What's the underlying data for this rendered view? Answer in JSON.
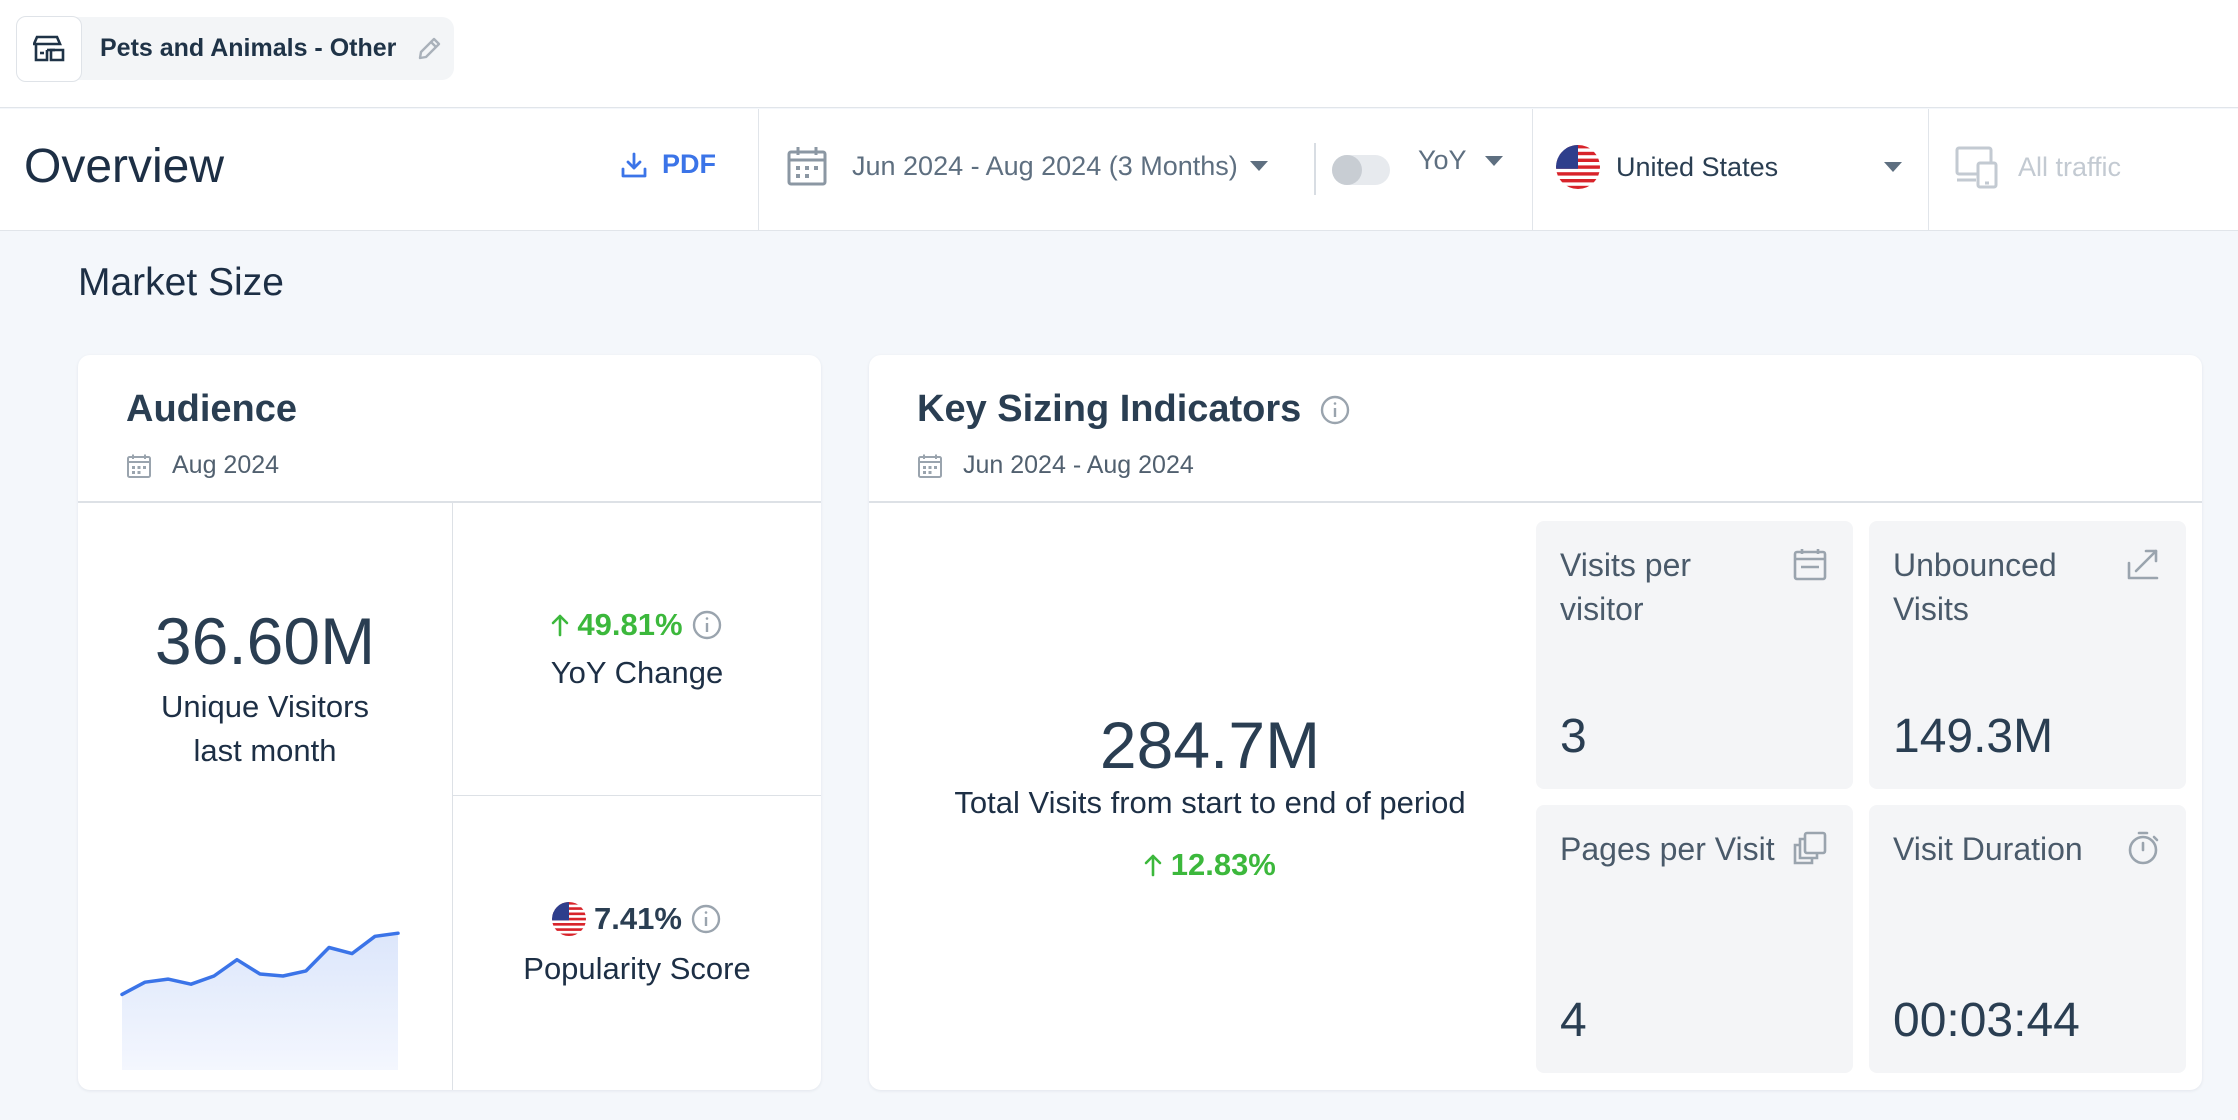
{
  "breadcrumb": {
    "label": "Pets and Animals - Other",
    "icon": "storefront-icon",
    "edit_icon": "pencil-icon"
  },
  "toolbar": {
    "title": "Overview",
    "pdf_label": "PDF",
    "date_range": "Jun 2024 - Aug 2024 (3 Months)",
    "compare_label": "YoY",
    "country": "United States",
    "traffic": "All traffic"
  },
  "market_size": {
    "title": "Market Size",
    "audience": {
      "title": "Audience",
      "date": "Aug 2024",
      "unique_visitors": "36.60M",
      "unique_visitors_label": "Unique Visitors last month",
      "yoy_change": "49.81%",
      "yoy_label": "YoY Change",
      "popularity": "7.41%",
      "popularity_label": "Popularity Score",
      "trend": [
        0.3,
        0.42,
        0.45,
        0.4,
        0.48,
        0.64,
        0.5,
        0.48,
        0.53,
        0.76,
        0.7,
        0.87,
        0.9
      ]
    },
    "key_sizing": {
      "title": "Key Sizing Indicators",
      "date": "Jun 2024 - Aug 2024",
      "total_visits": "284.7M",
      "total_visits_label": "Total Visits from start to end of period",
      "total_change": "12.83%",
      "tiles": {
        "visits_per_visitor": {
          "label_1": "Visits per",
          "label_2": "visitor",
          "value": "3"
        },
        "unbounced_visits": {
          "label_1": "Unbounced",
          "label_2": "Visits",
          "value": "149.3M"
        },
        "pages_per_visit": {
          "label": "Pages per Visit",
          "value": "4"
        },
        "visit_duration": {
          "label": "Visit Duration",
          "value": "00:03:44"
        }
      }
    }
  },
  "colors": {
    "accent": "#3b74e8",
    "positive": "#3cb83c",
    "sparkline": "#3b74e8"
  }
}
